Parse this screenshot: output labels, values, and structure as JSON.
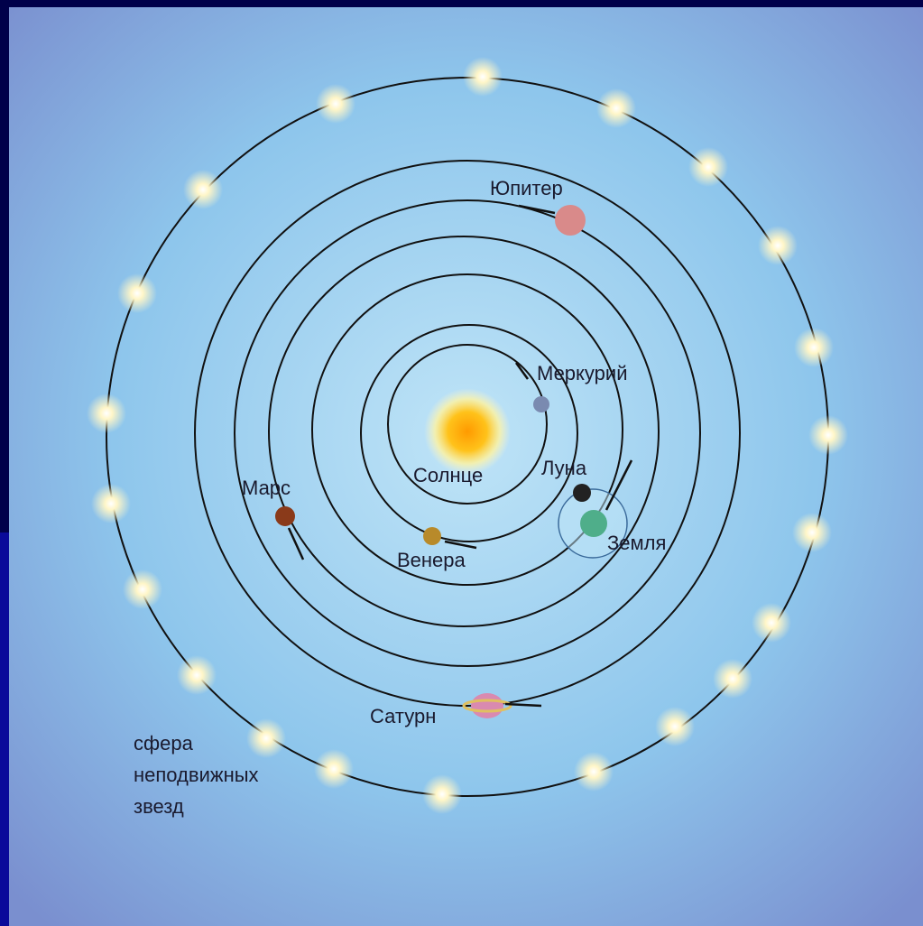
{
  "labels": [
    "Юпитер",
    "Меркурий",
    "Солнце",
    "Луна",
    "Марс",
    "Венера",
    "Земля",
    "Сатурн"
  ],
  "caption": [
    "сфера",
    "неподвижных",
    "звезд"
  ]
}
